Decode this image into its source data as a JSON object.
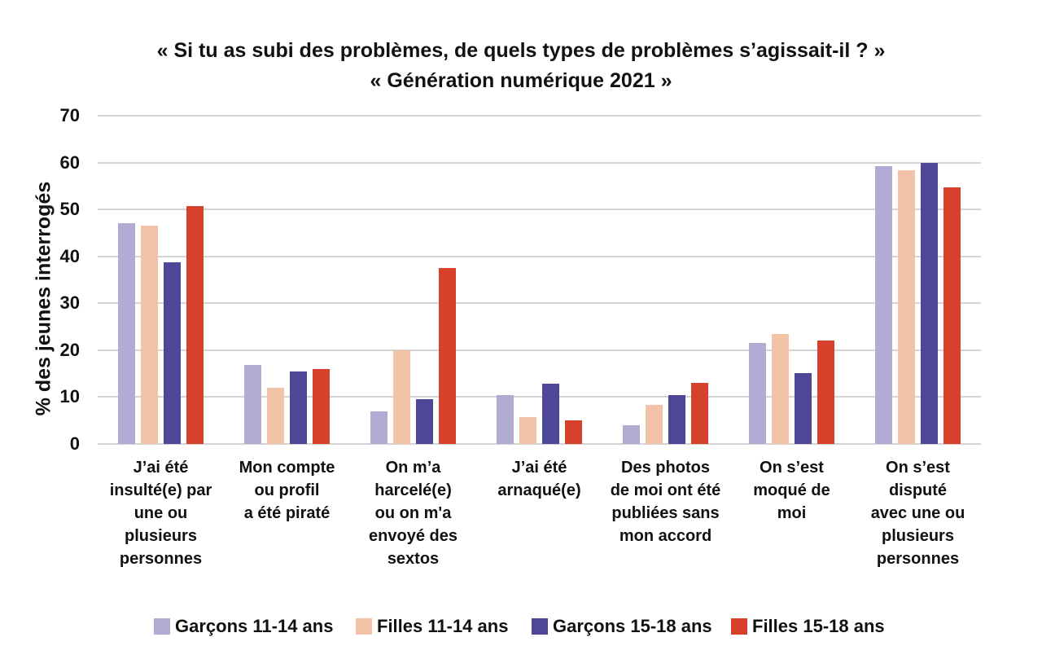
{
  "chart_data": {
    "type": "bar",
    "title": "« Si tu as subi des problèmes, de quels types de problèmes s’agissait-il ? »",
    "subtitle": "« Génération numérique 2021 »",
    "ylabel": "% des jeunes interrogés",
    "xlabel": "",
    "ylim": [
      0,
      70
    ],
    "yticks": [
      0,
      10,
      20,
      30,
      40,
      50,
      60,
      70
    ],
    "grid": "horizontal",
    "legend_position": "bottom",
    "categories": [
      "J’ai été\ninsulté(e) par\nune ou plusieurs\npersonnes",
      "Mon compte\nou profil\na été piraté",
      "On m’a\nharcelé(e)\nou on m'a\nenvoyé des\nsextos",
      "J’ai été\narnaqué(e)",
      "Des photos\nde moi ont été\npubliées sans\nmon accord",
      "On s’est\nmoqué de\nmoi",
      "On s’est\ndisputé\navec une ou\nplusieurs\npersonnes"
    ],
    "series": [
      {
        "name": "Garçons 11-14 ans",
        "color": "#b2acd4",
        "values": [
          47.0,
          16.8,
          7.0,
          10.5,
          4.0,
          21.5,
          59.3
        ]
      },
      {
        "name": "Filles 11-14 ans",
        "color": "#f3c3a7",
        "values": [
          46.5,
          12.0,
          20.0,
          5.7,
          8.4,
          23.4,
          58.3
        ]
      },
      {
        "name": "Garçons 15-18 ans",
        "color": "#4e4797",
        "values": [
          38.8,
          15.4,
          9.5,
          12.8,
          10.5,
          15.2,
          60.0
        ]
      },
      {
        "name": "Filles 15-18 ans",
        "color": "#d7402a",
        "values": [
          50.7,
          15.9,
          37.6,
          5.0,
          13.1,
          22.0,
          54.8
        ]
      }
    ]
  },
  "layout_colors": {
    "gridline": "#d4d4d4",
    "text": "#111111",
    "background": "#ffffff"
  },
  "legend_x_positions": [
    189,
    437,
    653,
    898
  ]
}
